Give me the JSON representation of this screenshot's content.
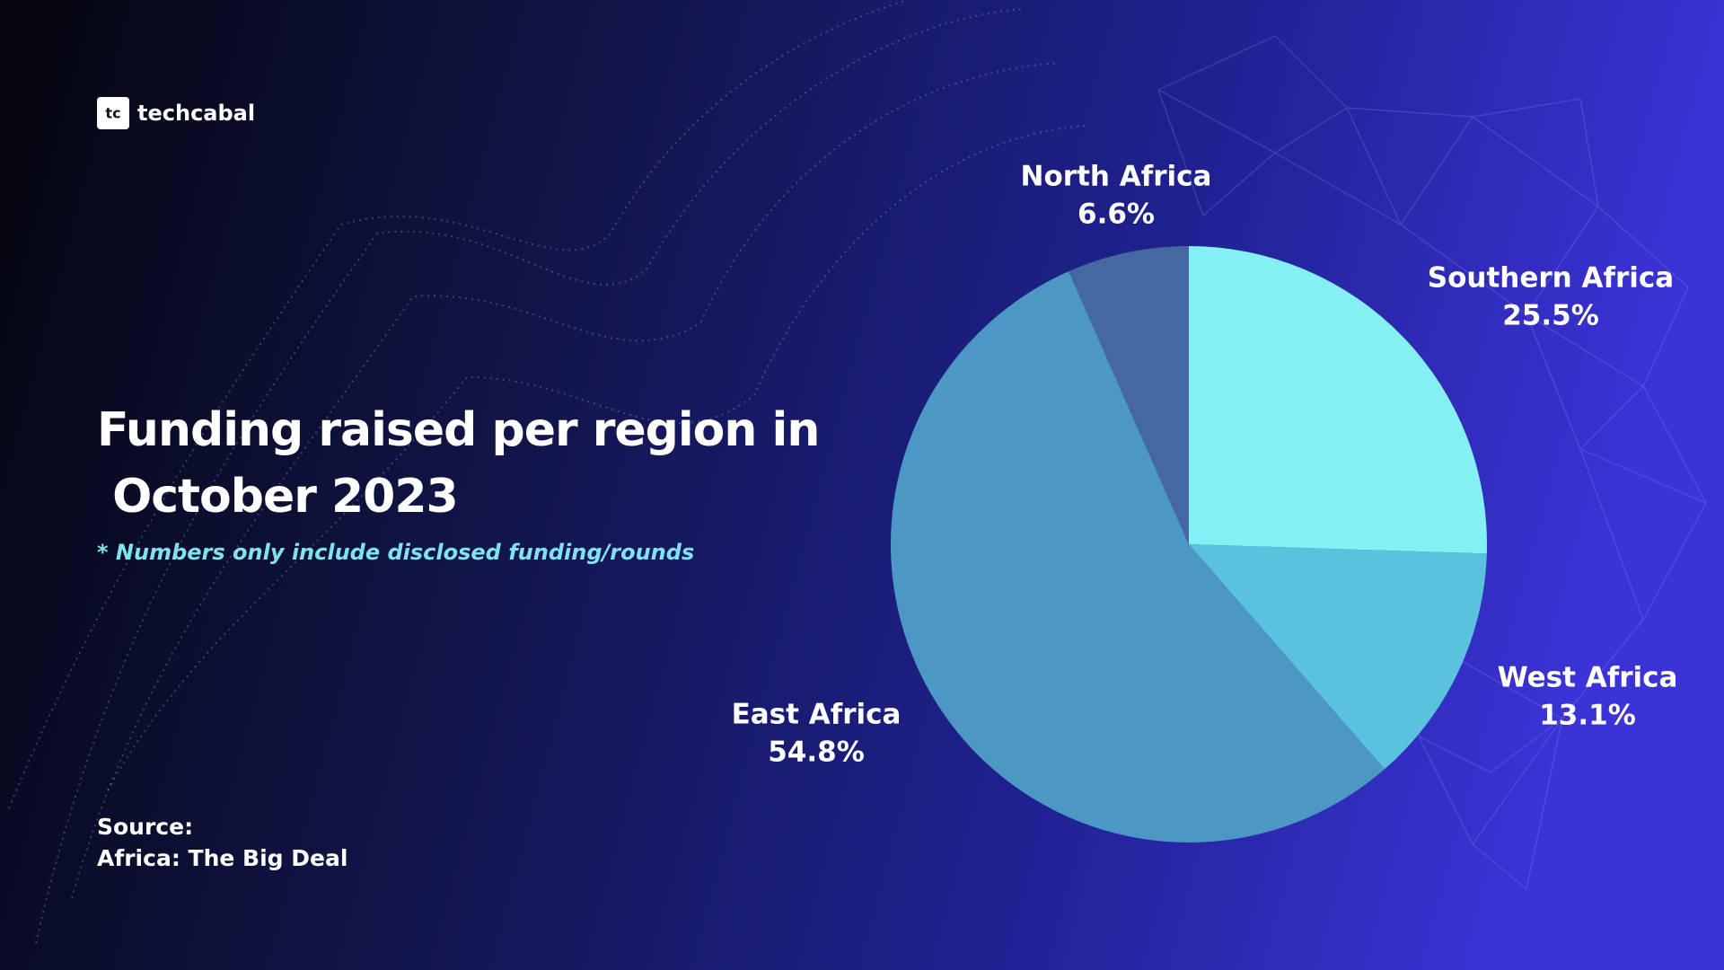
{
  "brand": "techcabal",
  "chart_data": {
    "type": "pie",
    "title": "Funding raised per region in October 2023",
    "subtitle": "* Numbers only include disclosed funding/rounds",
    "categories": [
      "Southern Africa",
      "West Africa",
      "East Africa",
      "North Africa"
    ],
    "values": [
      25.5,
      13.1,
      54.8,
      6.6
    ],
    "value_labels": [
      "25.5%",
      "13.1%",
      "54.8%",
      "6.6%"
    ],
    "colors": [
      "#84f0f4",
      "#5bc2de",
      "#4d97c5",
      "#4568a0"
    ]
  },
  "source_label": "Source:",
  "source": "Africa: The Big Deal"
}
